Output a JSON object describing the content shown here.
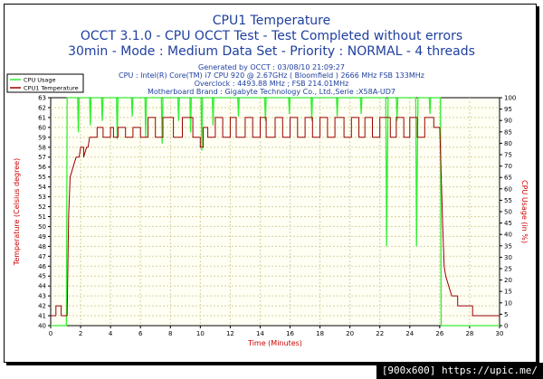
{
  "header": {
    "title": "CPU1 Temperature",
    "line2": "OCCT 3.1.0 - CPU OCCT Test - Test Completed without errors",
    "line3": "30min - Mode : Medium Data Set - Priority : NORMAL - 4 threads",
    "info": [
      "Generated by OCCT : 03/08/10 21:09:27",
      "CPU : Intel(R) Core(TM) i7 CPU 920 @ 2.67GHz ( Bloomfield ) 2666 MHz FSB 133MHz",
      "Overclock : 4493.88 MHz ; FSB 214.01MHz",
      "Motherboard Brand : Gigabyte Technology Co., Ltd.,Serie :X58A-UD7"
    ]
  },
  "watermark": "[900x600] https://upic.me/",
  "colors": {
    "cpu_usage": "#33ee33",
    "temperature": "#990000",
    "grid": "#d8d0a0",
    "text": "#1f3f9f"
  },
  "chart_data": {
    "type": "line",
    "xlabel": "Time (Minutes)",
    "ylabel_left": "Temperature (Celsius degree)",
    "ylabel_right": "CPU Usage (in %)",
    "xlim": [
      0,
      30
    ],
    "ylim_left": [
      40,
      63
    ],
    "ylim_right": [
      0,
      100
    ],
    "x_ticks": [
      0,
      2,
      4,
      6,
      8,
      10,
      12,
      14,
      16,
      18,
      20,
      22,
      24,
      26,
      28,
      30
    ],
    "y_left_ticks": [
      40,
      41,
      42,
      43,
      44,
      45,
      46,
      47,
      48,
      49,
      50,
      51,
      52,
      53,
      54,
      55,
      56,
      57,
      58,
      59,
      60,
      61,
      62,
      63
    ],
    "y_right_ticks": [
      0,
      5,
      10,
      15,
      20,
      25,
      30,
      35,
      40,
      45,
      50,
      55,
      60,
      65,
      70,
      75,
      80,
      85,
      90,
      95,
      100
    ],
    "grid": true,
    "legend_position": "top-left",
    "series": [
      {
        "name": "CPU Usage",
        "axis": "right",
        "points": [
          [
            0,
            0
          ],
          [
            1.05,
            0
          ],
          [
            1.1,
            100
          ],
          [
            1.8,
            100
          ],
          [
            1.85,
            85
          ],
          [
            1.9,
            100
          ],
          [
            2.6,
            100
          ],
          [
            2.65,
            88
          ],
          [
            2.7,
            100
          ],
          [
            3.4,
            100
          ],
          [
            3.45,
            90
          ],
          [
            3.5,
            100
          ],
          [
            4.4,
            100
          ],
          [
            4.45,
            82
          ],
          [
            4.5,
            100
          ],
          [
            5.4,
            100
          ],
          [
            5.45,
            92
          ],
          [
            5.5,
            100
          ],
          [
            6.3,
            100
          ],
          [
            6.35,
            83
          ],
          [
            6.4,
            100
          ],
          [
            7.4,
            100
          ],
          [
            7.45,
            80
          ],
          [
            7.5,
            100
          ],
          [
            8.5,
            100
          ],
          [
            8.55,
            90
          ],
          [
            8.6,
            100
          ],
          [
            9.3,
            100
          ],
          [
            9.35,
            85
          ],
          [
            9.4,
            100
          ],
          [
            10.05,
            100
          ],
          [
            10.1,
            77
          ],
          [
            10.15,
            100
          ],
          [
            10.8,
            100
          ],
          [
            10.85,
            88
          ],
          [
            10.9,
            100
          ],
          [
            12.5,
            100
          ],
          [
            12.55,
            92
          ],
          [
            12.6,
            100
          ],
          [
            14.3,
            100
          ],
          [
            14.35,
            90
          ],
          [
            14.4,
            100
          ],
          [
            15.9,
            100
          ],
          [
            15.95,
            93
          ],
          [
            16.0,
            100
          ],
          [
            17.4,
            100
          ],
          [
            17.45,
            90
          ],
          [
            17.5,
            100
          ],
          [
            19.1,
            100
          ],
          [
            19.15,
            92
          ],
          [
            19.2,
            100
          ],
          [
            20.7,
            100
          ],
          [
            20.75,
            93
          ],
          [
            20.8,
            100
          ],
          [
            22.4,
            100
          ],
          [
            22.45,
            35
          ],
          [
            22.55,
            100
          ],
          [
            23.1,
            100
          ],
          [
            23.15,
            90
          ],
          [
            23.2,
            100
          ],
          [
            24.4,
            100
          ],
          [
            24.45,
            35
          ],
          [
            24.55,
            100
          ],
          [
            25.3,
            100
          ],
          [
            25.35,
            93
          ],
          [
            25.4,
            100
          ],
          [
            26.05,
            100
          ],
          [
            26.1,
            0
          ],
          [
            30,
            0
          ]
        ]
      },
      {
        "name": "CPU1 Temperature",
        "axis": "left",
        "points": [
          [
            0,
            41
          ],
          [
            0.35,
            41
          ],
          [
            0.35,
            42
          ],
          [
            0.7,
            42
          ],
          [
            0.7,
            41
          ],
          [
            1.1,
            41
          ],
          [
            1.2,
            51
          ],
          [
            1.3,
            55
          ],
          [
            1.5,
            56
          ],
          [
            1.7,
            57
          ],
          [
            1.9,
            57
          ],
          [
            2.0,
            58
          ],
          [
            2.2,
            58
          ],
          [
            2.2,
            57
          ],
          [
            2.4,
            58
          ],
          [
            2.5,
            58
          ],
          [
            2.6,
            59
          ],
          [
            3.1,
            59
          ],
          [
            3.1,
            60
          ],
          [
            3.5,
            60
          ],
          [
            3.5,
            59
          ],
          [
            4.0,
            59
          ],
          [
            4.0,
            60
          ],
          [
            4.2,
            60
          ],
          [
            4.2,
            59
          ],
          [
            4.5,
            59
          ],
          [
            4.5,
            60
          ],
          [
            5.0,
            60
          ],
          [
            5.0,
            59
          ],
          [
            5.5,
            59
          ],
          [
            5.5,
            60
          ],
          [
            6.0,
            60
          ],
          [
            6.0,
            59
          ],
          [
            6.5,
            59
          ],
          [
            6.5,
            61
          ],
          [
            7.0,
            61
          ],
          [
            7.0,
            59
          ],
          [
            7.5,
            59
          ],
          [
            7.5,
            61
          ],
          [
            8.2,
            61
          ],
          [
            8.2,
            59
          ],
          [
            8.8,
            59
          ],
          [
            8.8,
            61
          ],
          [
            9.5,
            61
          ],
          [
            9.5,
            59
          ],
          [
            10.0,
            59
          ],
          [
            10.0,
            58
          ],
          [
            10.2,
            58
          ],
          [
            10.2,
            60
          ],
          [
            10.5,
            60
          ],
          [
            10.5,
            59
          ],
          [
            11.0,
            59
          ],
          [
            11.0,
            61
          ],
          [
            11.5,
            61
          ],
          [
            11.5,
            59
          ],
          [
            12.0,
            59
          ],
          [
            12.0,
            61
          ],
          [
            12.4,
            61
          ],
          [
            12.4,
            59
          ],
          [
            13.0,
            59
          ],
          [
            13.0,
            61
          ],
          [
            13.5,
            61
          ],
          [
            13.5,
            59
          ],
          [
            14.0,
            59
          ],
          [
            14.0,
            61
          ],
          [
            14.4,
            61
          ],
          [
            14.4,
            59
          ],
          [
            15.0,
            59
          ],
          [
            15.0,
            61
          ],
          [
            15.5,
            61
          ],
          [
            15.5,
            59
          ],
          [
            16.0,
            59
          ],
          [
            16.0,
            61
          ],
          [
            16.5,
            61
          ],
          [
            16.5,
            59
          ],
          [
            17.0,
            59
          ],
          [
            17.0,
            61
          ],
          [
            17.5,
            61
          ],
          [
            17.5,
            59
          ],
          [
            18.0,
            59
          ],
          [
            18.0,
            61
          ],
          [
            18.5,
            61
          ],
          [
            18.5,
            59
          ],
          [
            19.0,
            59
          ],
          [
            19.0,
            61
          ],
          [
            19.6,
            61
          ],
          [
            19.6,
            59
          ],
          [
            20.1,
            59
          ],
          [
            20.1,
            61
          ],
          [
            20.6,
            61
          ],
          [
            20.6,
            59
          ],
          [
            21.0,
            59
          ],
          [
            21.0,
            61
          ],
          [
            21.5,
            61
          ],
          [
            21.5,
            59
          ],
          [
            22.0,
            59
          ],
          [
            22.0,
            61
          ],
          [
            22.7,
            61
          ],
          [
            22.7,
            59
          ],
          [
            23.1,
            59
          ],
          [
            23.1,
            61
          ],
          [
            23.6,
            61
          ],
          [
            23.6,
            59
          ],
          [
            24.0,
            59
          ],
          [
            24.0,
            61
          ],
          [
            24.5,
            61
          ],
          [
            24.5,
            59
          ],
          [
            25.0,
            59
          ],
          [
            25.0,
            61
          ],
          [
            25.6,
            61
          ],
          [
            25.6,
            60
          ],
          [
            26.0,
            60
          ],
          [
            26.2,
            50
          ],
          [
            26.3,
            46
          ],
          [
            26.4,
            45
          ],
          [
            26.6,
            44
          ],
          [
            26.8,
            43
          ],
          [
            27.2,
            43
          ],
          [
            27.2,
            42
          ],
          [
            28.2,
            42
          ],
          [
            28.2,
            41
          ],
          [
            30,
            41
          ]
        ]
      }
    ]
  }
}
